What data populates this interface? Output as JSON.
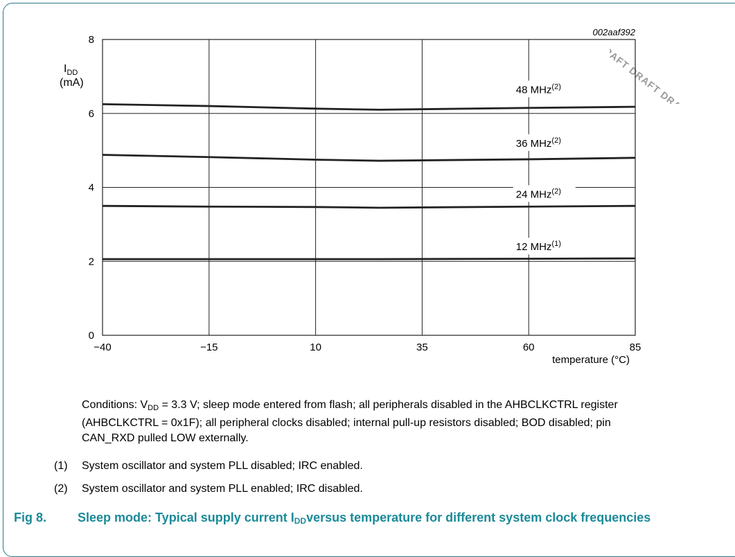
{
  "watermark": "DRAFT DRAFT DRAFT DR",
  "chart_data": {
    "type": "line",
    "figure_id": "002aaf392",
    "ylabel_main": "I",
    "ylabel_sub": "DD",
    "ylabel_unit": "(mA)",
    "xlabel": "temperature (°C)",
    "xlim": [
      -40,
      85
    ],
    "ylim": [
      0,
      8
    ],
    "x_ticks": [
      "−40",
      "−15",
      "10",
      "35",
      "60",
      "85"
    ],
    "y_ticks": [
      "0",
      "2",
      "4",
      "6",
      "8"
    ],
    "grid": true,
    "x": [
      -40,
      -15,
      10,
      25,
      60,
      85
    ],
    "series": [
      {
        "name": "48 MHz",
        "note": "(2)",
        "values": [
          6.25,
          6.2,
          6.13,
          6.1,
          6.15,
          6.18
        ]
      },
      {
        "name": "36 MHz",
        "note": "(2)",
        "values": [
          4.88,
          4.82,
          4.75,
          4.72,
          4.76,
          4.8
        ]
      },
      {
        "name": "24 MHz",
        "note": "(2)",
        "values": [
          3.5,
          3.48,
          3.47,
          3.45,
          3.48,
          3.5
        ]
      },
      {
        "name": "12 MHz",
        "note": "(1)",
        "values": [
          2.06,
          2.06,
          2.06,
          2.06,
          2.07,
          2.08
        ]
      }
    ],
    "label_x": [
      57,
      57,
      57,
      57
    ],
    "label_y": [
      6.55,
      5.1,
      3.72,
      2.3
    ]
  },
  "conditions": {
    "prefix": "Conditions: V",
    "sub": "DD",
    "rest": " = 3.3 V; sleep mode entered from flash; all peripherals disabled in the AHBCLKCTRL register (AHBCLKCTRL = 0x1F); all peripheral clocks disabled; internal pull-up resistors disabled; BOD disabled; pin CAN_RXD pulled LOW externally."
  },
  "notes": [
    {
      "num": "(1)",
      "text": "System oscillator and system PLL disabled; IRC enabled."
    },
    {
      "num": "(2)",
      "text": "System oscillator and system PLL enabled; IRC disabled."
    }
  ],
  "caption": {
    "fig": "Fig 8.",
    "title_a": "Sleep mode: Typical supply current I",
    "title_sub": "DD",
    "title_b": "versus temperature for different system clock frequencies"
  },
  "colors": {
    "frame": "#2a7a86",
    "caption": "#1b8a99",
    "line": "#222222",
    "grid": "#222222"
  }
}
